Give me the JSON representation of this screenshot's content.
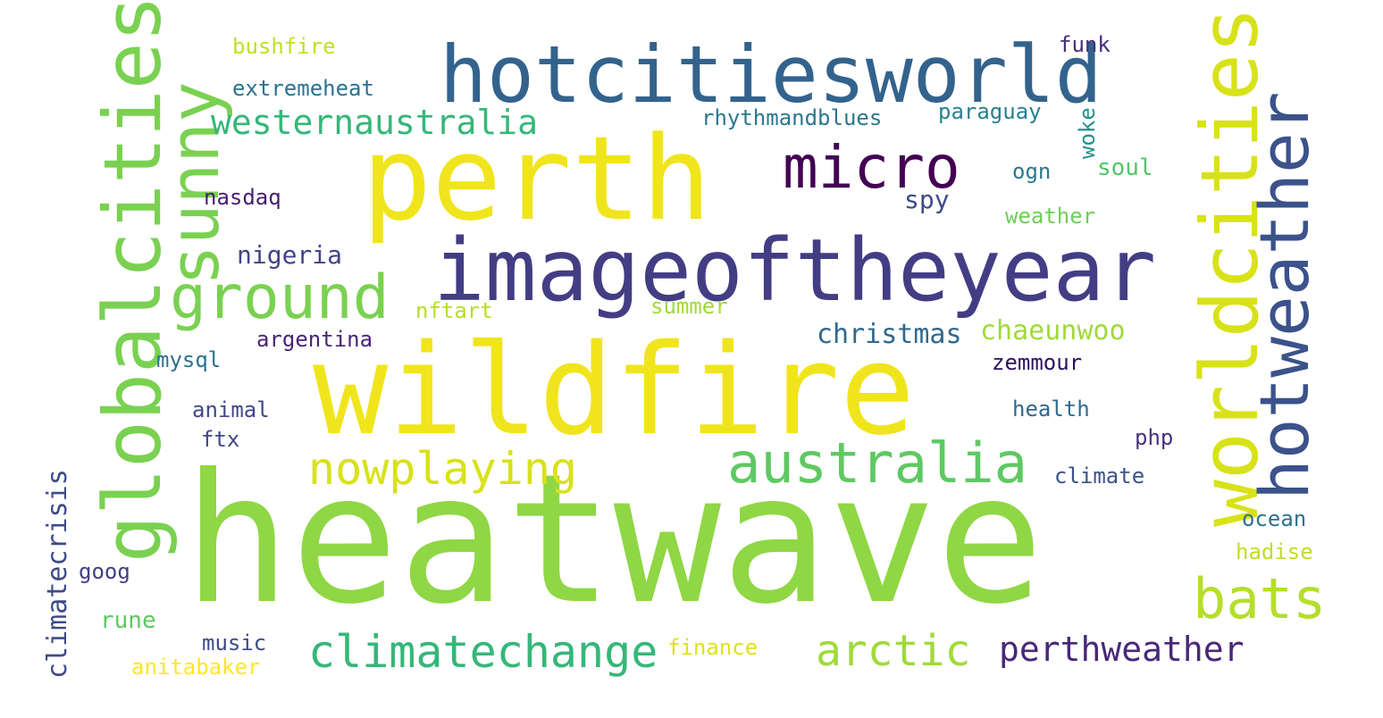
{
  "words": [
    {
      "id": "heatwave",
      "text": "heatwave",
      "color": "#8fd744",
      "weight": 100,
      "orientation": "horizontal"
    },
    {
      "id": "wildfire",
      "text": "wildfire",
      "color": "#f0e51c",
      "weight": 70,
      "orientation": "horizontal"
    },
    {
      "id": "perth",
      "text": "perth",
      "color": "#f0e51c",
      "weight": 62,
      "orientation": "horizontal"
    },
    {
      "id": "imageoftheyear",
      "text": "imageoftheyear",
      "color": "#433d84",
      "weight": 48,
      "orientation": "horizontal"
    },
    {
      "id": "hotcitiesworld",
      "text": "hotcitiesworld",
      "color": "#33638d",
      "weight": 44,
      "orientation": "horizontal"
    },
    {
      "id": "globalcities",
      "text": "globalcities",
      "color": "#7ad151",
      "weight": 44,
      "orientation": "vertical"
    },
    {
      "id": "worldcities",
      "text": "worldcities",
      "color": "#d8e219",
      "weight": 44,
      "orientation": "vertical"
    },
    {
      "id": "hotweather",
      "text": "hotweather",
      "color": "#3b528b",
      "weight": 40,
      "orientation": "vertical"
    },
    {
      "id": "sunny",
      "text": "sunny",
      "color": "#7ad151",
      "weight": 38,
      "orientation": "vertical"
    },
    {
      "id": "micro",
      "text": "micro",
      "color": "#440154",
      "weight": 32,
      "orientation": "horizontal"
    },
    {
      "id": "australia",
      "text": "australia",
      "color": "#5ec962",
      "weight": 32,
      "orientation": "horizontal"
    },
    {
      "id": "ground",
      "text": "ground",
      "color": "#7ad151",
      "weight": 32,
      "orientation": "horizontal"
    },
    {
      "id": "bats",
      "text": "bats",
      "color": "#b5de2b",
      "weight": 30,
      "orientation": "horizontal"
    },
    {
      "id": "nowplaying",
      "text": "nowplaying",
      "color": "#d8e219",
      "weight": 26,
      "orientation": "horizontal"
    },
    {
      "id": "climatechange",
      "text": "climatechange",
      "color": "#35b779",
      "weight": 26,
      "orientation": "horizontal"
    },
    {
      "id": "arctic",
      "text": "arctic",
      "color": "#a0da39",
      "weight": 24,
      "orientation": "horizontal"
    },
    {
      "id": "perthweather",
      "text": "perthweather",
      "color": "#482878",
      "weight": 20,
      "orientation": "horizontal"
    },
    {
      "id": "westernaustralia",
      "text": "westernaustralia",
      "color": "#35b779",
      "weight": 20,
      "orientation": "horizontal"
    },
    {
      "id": "climatecrisis",
      "text": "climatecrisis",
      "color": "#3e4a89",
      "weight": 14,
      "orientation": "vertical"
    },
    {
      "id": "chaeunwoo",
      "text": "chaeunwoo",
      "color": "#a0da39",
      "weight": 16,
      "orientation": "horizontal"
    },
    {
      "id": "christmas",
      "text": "christmas",
      "color": "#31688e",
      "weight": 16,
      "orientation": "horizontal"
    },
    {
      "id": "nigeria",
      "text": "nigeria",
      "color": "#414487",
      "weight": 14,
      "orientation": "horizontal"
    },
    {
      "id": "rhythmandblues",
      "text": "rhythmandblues",
      "color": "#2a788e",
      "weight": 13,
      "orientation": "horizontal"
    },
    {
      "id": "paraguay",
      "text": "paraguay",
      "color": "#26828e",
      "weight": 13,
      "orientation": "horizontal"
    },
    {
      "id": "woke",
      "text": "woke",
      "color": "#21918c",
      "weight": 13,
      "orientation": "vertical"
    },
    {
      "id": "bushfire",
      "text": "bushfire",
      "color": "#c2df23",
      "weight": 12,
      "orientation": "horizontal"
    },
    {
      "id": "extremeheat",
      "text": "extremeheat",
      "color": "#2c728e",
      "weight": 12,
      "orientation": "horizontal"
    },
    {
      "id": "funk",
      "text": "funk",
      "color": "#472d7b",
      "weight": 12,
      "orientation": "horizontal"
    },
    {
      "id": "soul",
      "text": "soul",
      "color": "#52c569",
      "weight": 13,
      "orientation": "horizontal"
    },
    {
      "id": "ogn",
      "text": "ogn",
      "color": "#2a788e",
      "weight": 12,
      "orientation": "horizontal"
    },
    {
      "id": "spy",
      "text": "spy",
      "color": "#3e4a89",
      "weight": 14,
      "orientation": "horizontal"
    },
    {
      "id": "nasdaq",
      "text": "nasdaq",
      "color": "#481f70",
      "weight": 12,
      "orientation": "horizontal"
    },
    {
      "id": "weather",
      "text": "weather",
      "color": "#6ece58",
      "weight": 12,
      "orientation": "horizontal"
    },
    {
      "id": "nftart",
      "text": "nftart",
      "color": "#b5de2b",
      "weight": 12,
      "orientation": "horizontal"
    },
    {
      "id": "summer",
      "text": "summer",
      "color": "#a0da39",
      "weight": 12,
      "orientation": "horizontal"
    },
    {
      "id": "argentina",
      "text": "argentina",
      "color": "#482475",
      "weight": 12,
      "orientation": "horizontal"
    },
    {
      "id": "mysql",
      "text": "mysql",
      "color": "#2c728e",
      "weight": 12,
      "orientation": "horizontal"
    },
    {
      "id": "zemmour",
      "text": "zemmour",
      "color": "#2d1160",
      "weight": 12,
      "orientation": "horizontal"
    },
    {
      "id": "animal",
      "text": "animal",
      "color": "#404688",
      "weight": 12,
      "orientation": "horizontal"
    },
    {
      "id": "health",
      "text": "health",
      "color": "#31688e",
      "weight": 12,
      "orientation": "horizontal"
    },
    {
      "id": "ftx",
      "text": "ftx",
      "color": "#414487",
      "weight": 12,
      "orientation": "horizontal"
    },
    {
      "id": "php",
      "text": "php",
      "color": "#46337e",
      "weight": 12,
      "orientation": "horizontal"
    },
    {
      "id": "climate",
      "text": "climate",
      "color": "#3b528b",
      "weight": 12,
      "orientation": "horizontal"
    },
    {
      "id": "ocean",
      "text": "ocean",
      "color": "#2c728e",
      "weight": 12,
      "orientation": "horizontal"
    },
    {
      "id": "hadise",
      "text": "hadise",
      "color": "#bddf26",
      "weight": 12,
      "orientation": "horizontal"
    },
    {
      "id": "goog",
      "text": "goog",
      "color": "#433e85",
      "weight": 12,
      "orientation": "horizontal"
    },
    {
      "id": "rune",
      "text": "rune",
      "color": "#5ec962",
      "weight": 12,
      "orientation": "horizontal"
    },
    {
      "id": "music",
      "text": "music",
      "color": "#3e4a89",
      "weight": 12,
      "orientation": "horizontal"
    },
    {
      "id": "finance",
      "text": "finance",
      "color": "#dde318",
      "weight": 12,
      "orientation": "horizontal"
    },
    {
      "id": "anitabaker",
      "text": "anitabaker",
      "color": "#fde725",
      "weight": 12,
      "orientation": "horizontal"
    }
  ]
}
